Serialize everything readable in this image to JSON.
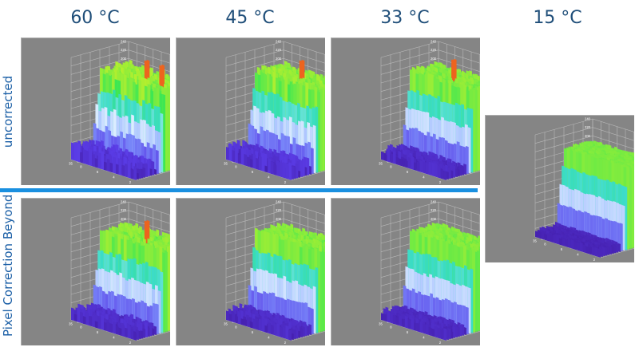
{
  "columns": [
    "60 °C",
    "45 °C",
    "33 °C",
    "15 °C"
  ],
  "rows": [
    "uncorrected",
    "Pixel Correction Beyond"
  ],
  "z_ticks": [
    "240",
    "220",
    "200",
    "180",
    "160",
    "140",
    "120",
    "100",
    "80",
    "60",
    "40",
    "20"
  ],
  "x_ticks": [
    "35",
    "30",
    "25",
    "20",
    "15",
    "10",
    "5"
  ],
  "y_ticks": [
    "8",
    "6",
    "4",
    "2"
  ],
  "colors": {
    "panel_bg": "#858585",
    "divider": "#1a90e0",
    "header_text": "#1f4e79",
    "row_label": "#1b5fa6"
  },
  "panels": [
    {
      "id": "60-uncorrected",
      "row": 0,
      "col": 0,
      "noise": 0.9,
      "spikes": [
        0.55,
        0.78
      ]
    },
    {
      "id": "45-uncorrected",
      "row": 0,
      "col": 1,
      "noise": 0.8,
      "spikes": [
        0.55
      ]
    },
    {
      "id": "33-uncorrected",
      "row": 0,
      "col": 2,
      "noise": 0.5,
      "spikes": [
        0.5
      ]
    },
    {
      "id": "15",
      "row": 0,
      "col": 3,
      "noise": 0.2,
      "spikes": []
    },
    {
      "id": "60-corrected",
      "row": 1,
      "col": 0,
      "noise": 0.6,
      "spikes": [
        0.55
      ]
    },
    {
      "id": "45-corrected",
      "row": 1,
      "col": 1,
      "noise": 0.5,
      "spikes": []
    },
    {
      "id": "33-corrected",
      "row": 1,
      "col": 2,
      "noise": 0.4,
      "spikes": []
    }
  ]
}
